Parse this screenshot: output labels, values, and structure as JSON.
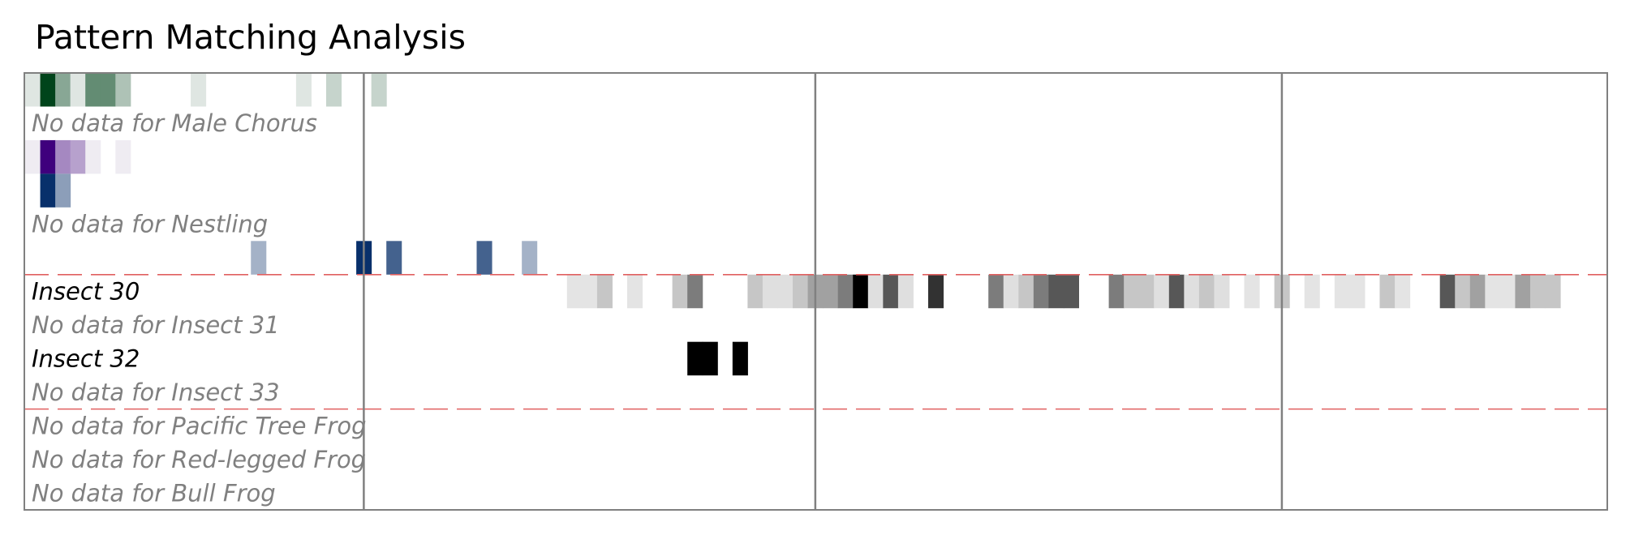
{
  "chart_data": {
    "type": "heatmap",
    "title": "Pattern Matching Analysis",
    "xlabel": "",
    "ylabel": "",
    "grid": false,
    "x_range": [
      0,
      106
    ],
    "bin_width": 1,
    "period_boundaries": [
      22.5,
      52.5,
      83.5
    ],
    "group_separators_after_rows": [
      5,
      9
    ],
    "rows": [
      {
        "label": "",
        "colormap": "green",
        "cells": [
          [
            0,
            0.1
          ],
          [
            1,
            1.0
          ],
          [
            2,
            0.45
          ],
          [
            3,
            0.1
          ],
          [
            4,
            0.6
          ],
          [
            5,
            0.6
          ],
          [
            6,
            0.3
          ],
          [
            11,
            0.1
          ],
          [
            18,
            0.1
          ],
          [
            20,
            0.2
          ],
          [
            23,
            0.2
          ]
        ]
      },
      {
        "label": "No data for Male Chorus",
        "colormap": "none",
        "cells": []
      },
      {
        "label": "",
        "colormap": "purple",
        "cells": [
          [
            0,
            0.05
          ],
          [
            1,
            1.0
          ],
          [
            2,
            0.45
          ],
          [
            3,
            0.35
          ],
          [
            4,
            0.05
          ],
          [
            6,
            0.05
          ]
        ]
      },
      {
        "label": "",
        "colormap": "blue",
        "cells": [
          [
            1,
            1.0
          ],
          [
            2,
            0.45
          ]
        ]
      },
      {
        "label": "No data for Nestling",
        "colormap": "none",
        "cells": []
      },
      {
        "label": "",
        "colormap": "blue",
        "cells": [
          [
            15,
            0.35
          ],
          [
            22,
            1.0
          ],
          [
            24,
            0.75
          ],
          [
            30,
            0.75
          ],
          [
            33,
            0.35
          ]
        ]
      },
      {
        "label": "Insect 30",
        "colormap": "gray",
        "cells": [
          [
            36,
            0.08
          ],
          [
            37,
            0.08
          ],
          [
            38,
            0.2
          ],
          [
            40,
            0.08
          ],
          [
            43,
            0.2
          ],
          [
            44,
            0.5
          ],
          [
            48,
            0.2
          ],
          [
            49,
            0.1
          ],
          [
            50,
            0.1
          ],
          [
            51,
            0.2
          ],
          [
            52,
            0.35
          ],
          [
            53,
            0.35
          ],
          [
            54,
            0.5
          ],
          [
            55,
            1.0
          ],
          [
            56,
            0.1
          ],
          [
            57,
            0.65
          ],
          [
            58,
            0.1
          ],
          [
            60,
            0.8
          ],
          [
            64,
            0.5
          ],
          [
            65,
            0.1
          ],
          [
            66,
            0.2
          ],
          [
            67,
            0.5
          ],
          [
            68,
            0.65
          ],
          [
            69,
            0.65
          ],
          [
            72,
            0.5
          ],
          [
            73,
            0.2
          ],
          [
            74,
            0.2
          ],
          [
            75,
            0.1
          ],
          [
            76,
            0.65
          ],
          [
            77,
            0.1
          ],
          [
            78,
            0.2
          ],
          [
            79,
            0.1
          ],
          [
            81,
            0.08
          ],
          [
            83,
            0.2
          ],
          [
            85,
            0.08
          ],
          [
            87,
            0.08
          ],
          [
            88,
            0.08
          ],
          [
            90,
            0.2
          ],
          [
            91,
            0.08
          ],
          [
            94,
            0.65
          ],
          [
            95,
            0.2
          ],
          [
            96,
            0.35
          ],
          [
            97,
            0.08
          ],
          [
            98,
            0.08
          ],
          [
            99,
            0.35
          ],
          [
            100,
            0.2
          ],
          [
            101,
            0.2
          ]
        ]
      },
      {
        "label": "No data for Insect 31",
        "colormap": "none",
        "cells": []
      },
      {
        "label": "Insect 32",
        "colormap": "gray",
        "cells": [
          [
            44,
            1.0
          ],
          [
            45,
            1.0
          ],
          [
            47,
            1.0
          ]
        ]
      },
      {
        "label": "No data for Insect 33",
        "colormap": "none",
        "cells": []
      },
      {
        "label": "No data for Pacific Tree Frog",
        "colormap": "none",
        "cells": []
      },
      {
        "label": "No data for Red-legged Frog",
        "colormap": "none",
        "cells": []
      },
      {
        "label": "No data for Bull Frog",
        "colormap": "none",
        "cells": []
      }
    ]
  },
  "colors": {
    "frame": "#808080",
    "separator": "#e06060",
    "no_data_text": "#808080",
    "label_text": "#000000",
    "green_dark": "#00441b",
    "purple_dark": "#3f007d",
    "blue_dark": "#08306b",
    "gray_dark": "#000000"
  }
}
